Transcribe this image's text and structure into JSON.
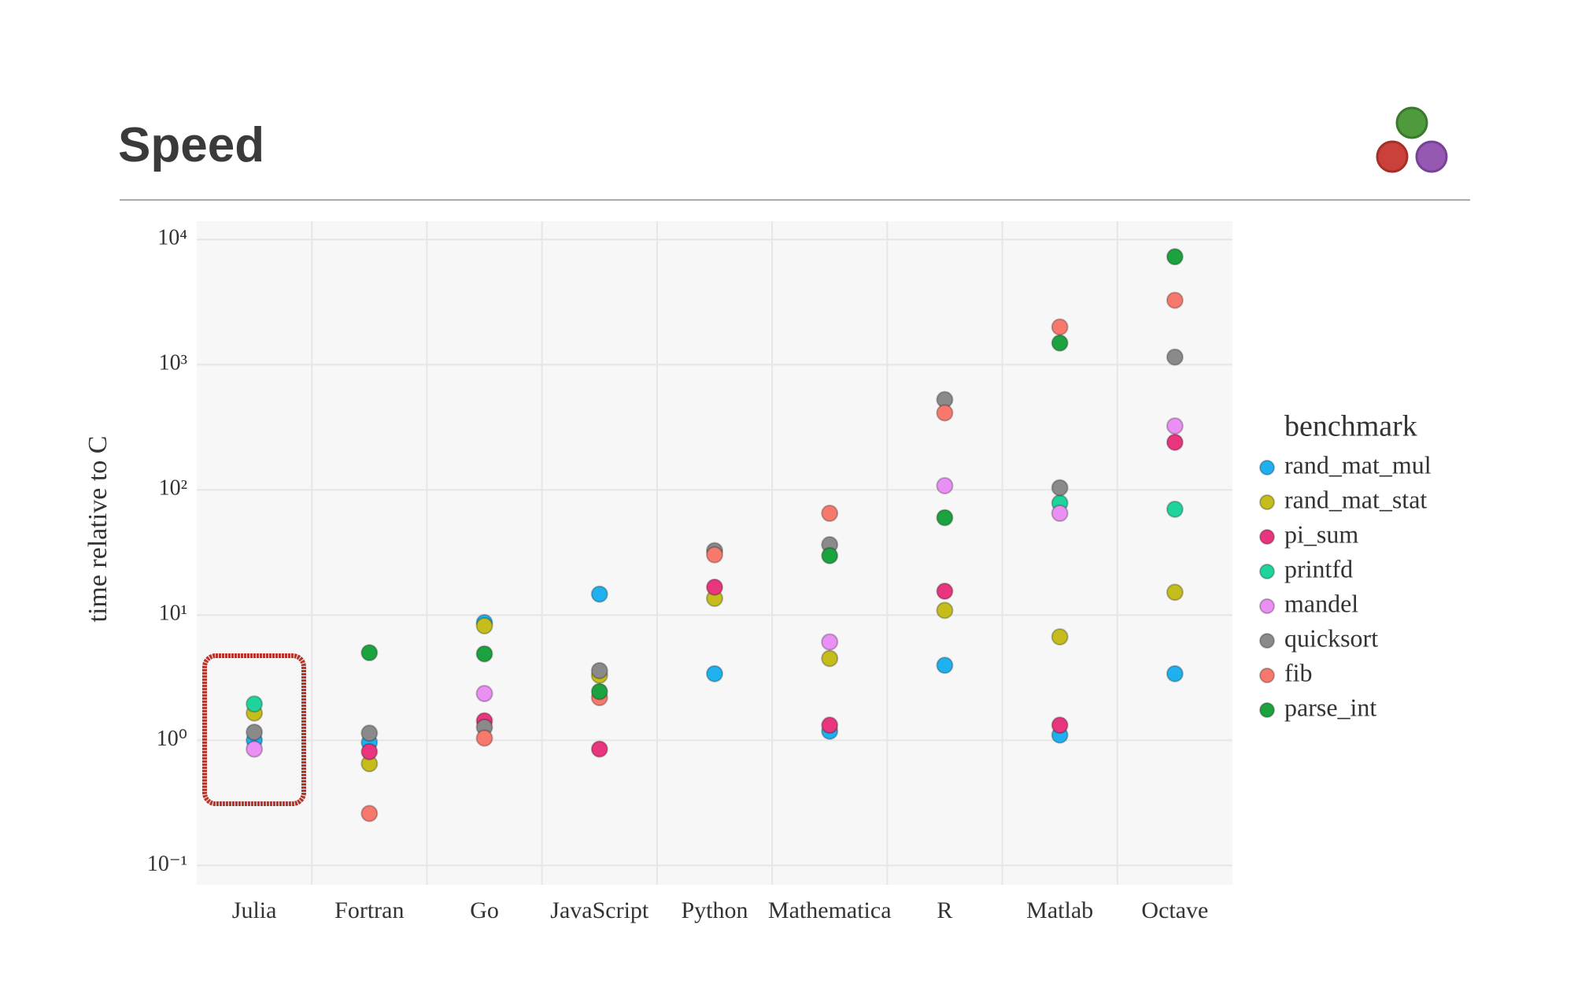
{
  "header": {
    "title": "Speed"
  },
  "chart_data": {
    "type": "scatter",
    "y_label": "time relative to C",
    "legend_title": "benchmark",
    "log_y": true,
    "grid": true,
    "legend_position": "right",
    "categories": [
      "Julia",
      "Fortran",
      "Go",
      "JavaScript",
      "Python",
      "Mathematica",
      "R",
      "Matlab",
      "Octave"
    ],
    "ylim": [
      0.07,
      14000
    ],
    "yticks": [
      {
        "value": 0.1,
        "label": "10⁻¹"
      },
      {
        "value": 1,
        "label": "10⁰"
      },
      {
        "value": 10,
        "label": "10¹"
      },
      {
        "value": 100,
        "label": "10²"
      },
      {
        "value": 1000,
        "label": "10³"
      },
      {
        "value": 10000,
        "label": "10⁴"
      }
    ],
    "series": [
      {
        "name": "rand_mat_mul",
        "color": "#1fb1ef",
        "values": [
          1.0,
          0.96,
          8.7,
          14.7,
          3.4,
          1.18,
          3.97,
          1.1,
          3.4
        ]
      },
      {
        "name": "rand_mat_stat",
        "color": "#c4bd1c",
        "values": [
          1.65,
          0.65,
          8.2,
          3.3,
          13.6,
          4.5,
          10.9,
          6.7,
          15.2
        ]
      },
      {
        "name": "pi_sum",
        "color": "#e8357d",
        "values": [
          null,
          0.81,
          1.43,
          0.85,
          16.7,
          1.32,
          15.5,
          1.32,
          240
        ]
      },
      {
        "name": "printfd",
        "color": "#1fd49c",
        "values": [
          1.95,
          null,
          null,
          null,
          null,
          null,
          null,
          78.5,
          70
        ]
      },
      {
        "name": "mandel",
        "color": "#ea8ff3",
        "values": [
          0.85,
          null,
          2.36,
          null,
          null,
          6.1,
          108,
          65,
          324
        ]
      },
      {
        "name": "quicksort",
        "color": "#8a8a8a",
        "values": [
          1.16,
          1.14,
          1.27,
          3.6,
          32.7,
          36.5,
          526,
          104,
          1150
        ]
      },
      {
        "name": "fib",
        "color": "#f7796e",
        "values": [
          null,
          0.26,
          1.04,
          2.19,
          30.3,
          65,
          412,
          2000,
          3270
        ]
      },
      {
        "name": "parse_int",
        "color": "#1ca33f",
        "values": [
          null,
          5.0,
          4.9,
          2.45,
          null,
          29.8,
          60,
          1490,
          7280
        ]
      }
    ]
  }
}
